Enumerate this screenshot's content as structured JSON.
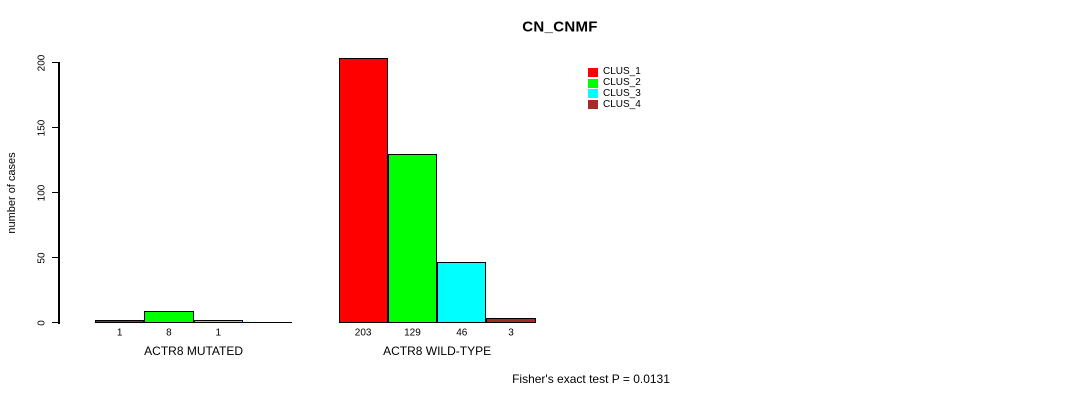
{
  "chart_data": {
    "type": "bar",
    "title": "CN_CNMF",
    "ylabel": "number of cases",
    "ylim": [
      0,
      200
    ],
    "yticks": [
      0,
      50,
      100,
      150,
      200
    ],
    "grid": false,
    "legend_position": "top-right",
    "legend": [
      {
        "label": "CLUS_1",
        "color": "#FF0000"
      },
      {
        "label": "CLUS_2",
        "color": "#00FF00"
      },
      {
        "label": "CLUS_3",
        "color": "#00FFFF"
      },
      {
        "label": "CLUS_4",
        "color": "#A52A2A"
      }
    ],
    "series_colors": [
      "#FF0000",
      "#00FF00",
      "#00FFFF",
      "#A52A2A"
    ],
    "groups": [
      {
        "label": "ACTR8 MUTATED",
        "bars": [
          {
            "series": "CLUS_1",
            "value": 1,
            "label": "1",
            "color": "#FF0000"
          },
          {
            "series": "CLUS_2",
            "value": 8,
            "label": "8",
            "color": "#00FF00"
          },
          {
            "series": "CLUS_3",
            "value": 1,
            "label": "1",
            "color": "#00FFFF"
          },
          {
            "series": "CLUS_4",
            "value": 0,
            "label": "",
            "color": "#A52A2A"
          }
        ]
      },
      {
        "label": "ACTR8 WILD-TYPE",
        "bars": [
          {
            "series": "CLUS_1",
            "value": 203,
            "label": "203",
            "color": "#FF0000"
          },
          {
            "series": "CLUS_2",
            "value": 129,
            "label": "129",
            "color": "#00FF00"
          },
          {
            "series": "CLUS_3",
            "value": 46,
            "label": "46",
            "color": "#00FFFF"
          },
          {
            "series": "CLUS_4",
            "value": 3,
            "label": "3",
            "color": "#A52A2A"
          }
        ]
      }
    ],
    "footnote": "Fisher's exact test P = 0.0131"
  }
}
